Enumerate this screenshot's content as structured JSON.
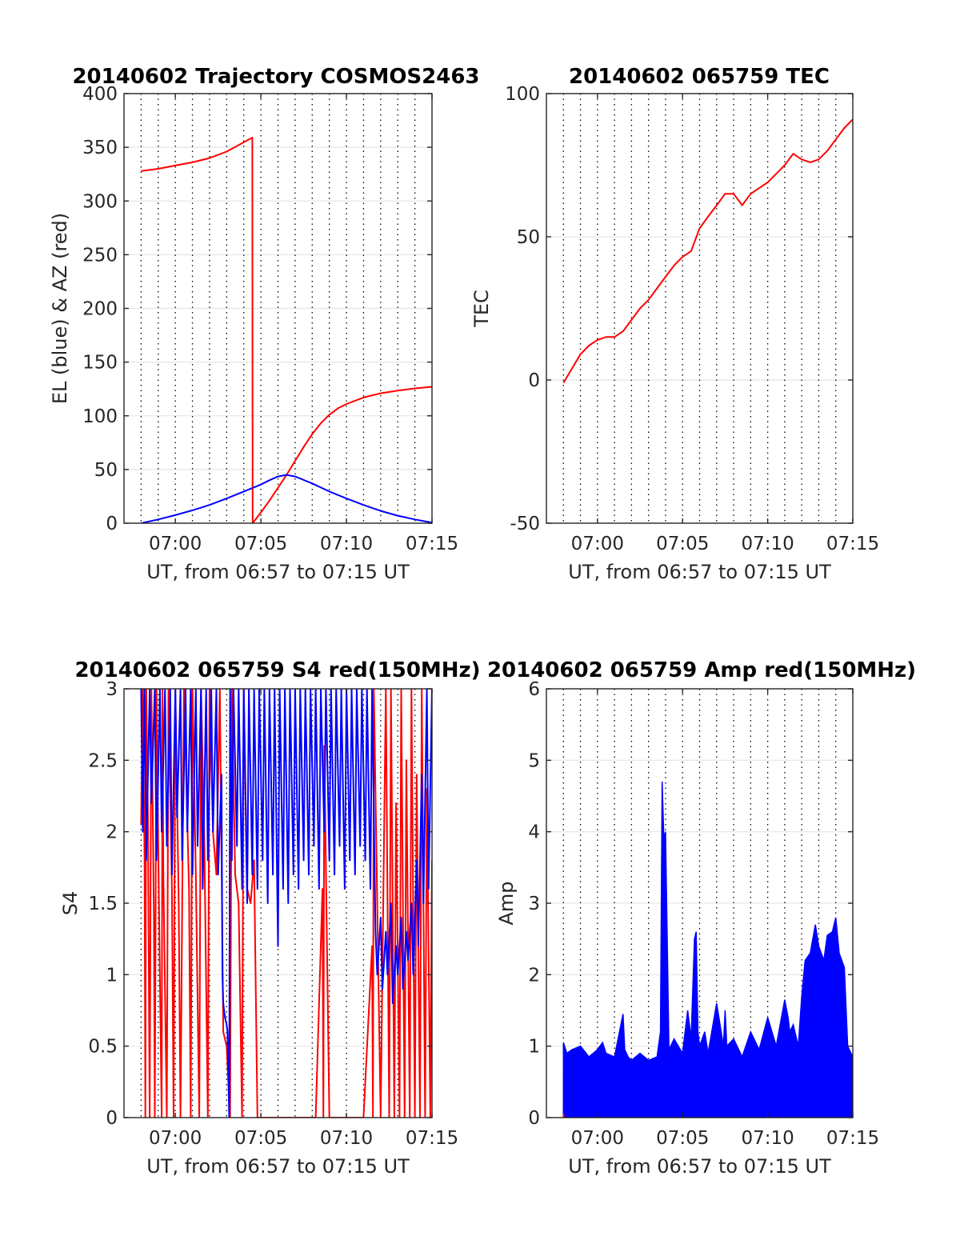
{
  "figure": {
    "background": "#ffffff",
    "colors": {
      "red": "#ff0000",
      "blue": "#0000ff",
      "axis": "#262626",
      "grid": "#e6e6e6",
      "minor": "#000000"
    }
  },
  "chart_data": [
    {
      "id": "traj",
      "type": "line",
      "title": "20140602 Trajectory COSMOS2463",
      "xlabel": "UT, from 06:57 to 07:15 UT",
      "ylabel": "EL (blue) & AZ (red)",
      "x_unit": "minutes after 06:57",
      "xlim": [
        0,
        18
      ],
      "ylim": [
        0,
        400
      ],
      "xticks": [
        3,
        8,
        13,
        18
      ],
      "xtick_labels": [
        "07:00",
        "07:05",
        "07:10",
        "07:15"
      ],
      "yticks": [
        0,
        50,
        100,
        150,
        200,
        250,
        300,
        350,
        400
      ],
      "ytick_labels": [
        "0",
        "50",
        "100",
        "150",
        "200",
        "250",
        "300",
        "350",
        "400"
      ],
      "minor_x_grid": true,
      "series": [
        {
          "color": "#ff0000",
          "x": [
            1,
            2,
            3,
            4,
            5,
            6,
            6.7,
            7.5,
            7.52,
            8,
            8.5,
            9,
            9.5,
            10,
            10.5,
            11,
            11.5,
            12,
            12.5,
            13,
            14,
            15,
            16,
            17,
            18
          ],
          "y": [
            328,
            330,
            333,
            336,
            340,
            346,
            352,
            359,
            0,
            10,
            21,
            33,
            45,
            58,
            71,
            83,
            93,
            101,
            107,
            111,
            117,
            121,
            123.5,
            125.5,
            127
          ]
        },
        {
          "color": "#0000ff",
          "x": [
            1,
            2,
            3,
            4,
            5,
            6,
            7,
            8,
            8.5,
            9,
            9.5,
            10,
            11,
            12,
            13,
            14,
            15,
            16,
            17,
            18
          ],
          "y": [
            0,
            3.5,
            7.5,
            12,
            17,
            23,
            29.5,
            36,
            40,
            43.5,
            45,
            43.5,
            37,
            29.5,
            23,
            17,
            11.5,
            7,
            3.5,
            0.5
          ]
        }
      ]
    },
    {
      "id": "tec",
      "type": "line",
      "title": "20140602 065759 TEC",
      "xlabel": "UT, from 06:57 to 07:15 UT",
      "ylabel": "TEC",
      "x_unit": "minutes after 06:57",
      "xlim": [
        0,
        18
      ],
      "ylim": [
        -50,
        100
      ],
      "xticks": [
        3,
        8,
        13,
        18
      ],
      "xtick_labels": [
        "07:00",
        "07:05",
        "07:10",
        "07:15"
      ],
      "yticks": [
        -50,
        0,
        50,
        100
      ],
      "ytick_labels": [
        "-50",
        "0",
        "50",
        "100"
      ],
      "minor_x_grid": true,
      "series": [
        {
          "color": "#ff0000",
          "x": [
            1,
            1.5,
            2,
            2.5,
            3,
            3.5,
            4,
            4.5,
            5,
            5.5,
            6,
            6.5,
            7,
            7.5,
            8,
            8.5,
            9,
            9.5,
            10,
            10.5,
            11,
            11.5,
            12,
            12.5,
            13,
            13.5,
            14,
            14.5,
            15,
            15.5,
            16,
            16.5,
            17,
            17.5,
            18
          ],
          "y": [
            -1,
            4,
            9,
            12,
            14,
            15,
            15,
            17,
            21,
            25,
            28,
            32,
            36,
            40,
            43,
            45,
            53,
            57,
            61,
            65,
            65,
            61,
            65,
            67,
            69,
            72,
            75,
            79,
            77,
            76,
            77,
            80,
            84,
            88,
            91
          ]
        }
      ]
    },
    {
      "id": "s4",
      "type": "line",
      "title": "20140602 065759 S4 red(150MHz)",
      "xlabel": "UT, from 06:57 to 07:15 UT",
      "ylabel": "S4",
      "x_unit": "minutes after 06:57",
      "xlim": [
        0,
        18
      ],
      "ylim": [
        0,
        3
      ],
      "xticks": [
        3,
        8,
        13,
        18
      ],
      "xtick_labels": [
        "07:00",
        "07:05",
        "07:10",
        "07:15"
      ],
      "yticks": [
        0,
        0.5,
        1,
        1.5,
        2,
        2.5,
        3
      ],
      "ytick_labels": [
        "0",
        "0.5",
        "1",
        "1.5",
        "2",
        "2.5",
        "3"
      ],
      "minor_x_grid": true,
      "series": [
        {
          "color": "#ff0000",
          "x": [
            1.0,
            1.1,
            1.2,
            1.25,
            1.3,
            1.4,
            1.5,
            1.6,
            1.75,
            1.8,
            1.9,
            2.0,
            2.2,
            2.25,
            2.3,
            2.5,
            2.6,
            2.8,
            2.9,
            3.0,
            3.2,
            3.3,
            3.5,
            3.8,
            3.9,
            4.0,
            4.2,
            4.4,
            4.5,
            4.7,
            4.9,
            5.0,
            5.2,
            5.4,
            5.6,
            5.8,
            6.0,
            6.2,
            6.3,
            6.5,
            6.7,
            6.9,
            7.0,
            7.2,
            7.4,
            7.6,
            7.8,
            8.0,
            8.4,
            8.8,
            9.2,
            9.6,
            10.0,
            10.4,
            10.8,
            11.2,
            11.6,
            11.65,
            11.7,
            12.0,
            12.5,
            13.0,
            13.5,
            14.0,
            14.5,
            14.55,
            14.6,
            15.0,
            15.3,
            15.5,
            15.6,
            15.8,
            15.9,
            16.1,
            16.2,
            16.4,
            16.5,
            16.7,
            16.8,
            17.0,
            17.1,
            17.3,
            17.4,
            17.6,
            17.7,
            17.9,
            18.0
          ],
          "y": [
            2.05,
            3.0,
            1.8,
            0.0,
            3.0,
            2.1,
            0.0,
            3.0,
            1.4,
            0.0,
            3.0,
            1.9,
            0.0,
            3.0,
            1.7,
            0.0,
            3.0,
            1.6,
            0.0,
            3.0,
            1.5,
            0.0,
            3.0,
            1.6,
            0.0,
            3.0,
            1.7,
            0.0,
            3.0,
            1.9,
            0.0,
            3.0,
            2.0,
            1.7,
            3.0,
            0.6,
            0.5,
            0.0,
            3.0,
            1.7,
            1.5,
            0.0,
            3.0,
            1.6,
            1.5,
            1.8,
            0.0,
            0.0,
            0.0,
            0.0,
            0.0,
            0.0,
            0.0,
            0.0,
            0.0,
            0.0,
            1.6,
            0.0,
            2.6,
            0.0,
            0.0,
            0.0,
            0.0,
            0.0,
            1.2,
            0.0,
            3.0,
            0.0,
            3.0,
            0.0,
            3.0,
            0.0,
            2.2,
            0.0,
            3.0,
            0.0,
            2.5,
            0.0,
            3.0,
            0.0,
            2.4,
            0.0,
            3.0,
            0.0,
            2.3,
            0.0,
            1.8
          ]
        },
        {
          "color": "#0000ff",
          "x": [
            1.0,
            1.1,
            1.2,
            1.3,
            1.5,
            1.6,
            1.8,
            1.9,
            2.1,
            2.2,
            2.4,
            2.5,
            2.7,
            2.8,
            3.0,
            3.1,
            3.3,
            3.4,
            3.6,
            3.7,
            3.9,
            4.0,
            4.2,
            4.3,
            4.5,
            4.6,
            4.8,
            4.9,
            5.1,
            5.2,
            5.4,
            5.5,
            5.7,
            5.75,
            5.8,
            5.9,
            6.0,
            6.05,
            6.15,
            6.2,
            6.3,
            6.4,
            6.6,
            6.7,
            6.9,
            7.0,
            7.2,
            7.3,
            7.5,
            7.6,
            7.8,
            7.9,
            8.1,
            8.2,
            8.4,
            8.5,
            8.7,
            8.8,
            9.0,
            9.1,
            9.3,
            9.4,
            9.6,
            9.7,
            9.9,
            10.0,
            10.2,
            10.3,
            10.5,
            10.6,
            10.8,
            10.9,
            11.1,
            11.2,
            11.4,
            11.5,
            11.7,
            11.8,
            12.0,
            12.1,
            12.3,
            12.4,
            12.6,
            12.7,
            12.9,
            13.0,
            13.2,
            13.3,
            13.5,
            13.6,
            13.8,
            13.9,
            14.1,
            14.2,
            14.4,
            14.5,
            14.7,
            14.8,
            15.0,
            15.1,
            15.3,
            15.4,
            15.6,
            15.7,
            15.9,
            16.0,
            16.2,
            16.3,
            16.5,
            16.6,
            16.8,
            16.9,
            17.1,
            17.2,
            17.4,
            17.5,
            17.7,
            17.8,
            18.0
          ],
          "y": [
            3.0,
            2.0,
            3.0,
            1.8,
            3.0,
            2.2,
            3.0,
            1.8,
            3.0,
            2.0,
            3.0,
            1.9,
            3.0,
            1.7,
            3.0,
            2.1,
            3.0,
            1.8,
            3.0,
            2.0,
            3.0,
            1.7,
            3.0,
            1.9,
            3.0,
            1.6,
            3.0,
            1.8,
            3.0,
            2.0,
            3.0,
            1.7,
            2.4,
            1.0,
            0.8,
            0.7,
            0.65,
            0.6,
            0.0,
            3.0,
            1.8,
            3.0,
            1.9,
            3.0,
            1.6,
            3.0,
            1.5,
            3.0,
            1.7,
            3.0,
            1.6,
            3.0,
            1.8,
            3.0,
            1.5,
            3.0,
            1.7,
            3.0,
            1.2,
            3.0,
            1.6,
            3.0,
            1.5,
            3.0,
            1.7,
            3.0,
            1.6,
            3.0,
            1.8,
            3.0,
            1.7,
            3.0,
            1.9,
            3.0,
            1.6,
            3.0,
            2.0,
            3.0,
            1.8,
            3.0,
            1.7,
            3.0,
            1.9,
            3.0,
            1.6,
            3.0,
            1.8,
            3.0,
            1.7,
            3.0,
            1.9,
            3.0,
            1.8,
            3.0,
            1.6,
            3.0,
            1.3,
            1.0,
            1.4,
            0.9,
            1.3,
            1.0,
            1.5,
            0.8,
            1.2,
            1.0,
            1.4,
            0.9,
            1.3,
            1.1,
            1.5,
            1.0,
            1.8,
            1.2,
            2.4,
            1.5,
            3.0,
            1.6,
            3.0
          ]
        }
      ]
    },
    {
      "id": "amp",
      "type": "line",
      "title": "20140602 065759 Amp red(150MHz)",
      "xlabel": "UT, from 06:57 to 07:15 UT",
      "ylabel": "Amp",
      "x_unit": "minutes after 06:57",
      "xlim": [
        0,
        18
      ],
      "ylim": [
        0,
        6
      ],
      "xticks": [
        3,
        8,
        13,
        18
      ],
      "xtick_labels": [
        "07:00",
        "07:05",
        "07:10",
        "07:15"
      ],
      "yticks": [
        0,
        1,
        2,
        3,
        4,
        5,
        6
      ],
      "ytick_labels": [
        "0",
        "1",
        "2",
        "3",
        "4",
        "5",
        "6"
      ],
      "minor_x_grid": true,
      "envelope_series": {
        "color": "#0000ff",
        "baseline": 0,
        "x": [
          1.0,
          1.2,
          1.5,
          2.0,
          2.5,
          3.0,
          3.3,
          3.5,
          4.0,
          4.5,
          4.6,
          4.8,
          5.0,
          5.5,
          6.0,
          6.5,
          6.7,
          6.8,
          6.9,
          7.0,
          7.2,
          7.5,
          8.0,
          8.3,
          8.5,
          8.7,
          8.8,
          8.9,
          9.0,
          9.3,
          9.5,
          10.0,
          10.4,
          10.5,
          10.6,
          11.0,
          11.5,
          12.0,
          12.5,
          13.0,
          13.5,
          14.0,
          14.2,
          14.3,
          14.5,
          14.8,
          15.0,
          15.2,
          15.5,
          15.8,
          16.0,
          16.3,
          16.5,
          16.8,
          17.0,
          17.2,
          17.5,
          17.7,
          18.0
        ],
        "y": [
          1.05,
          0.9,
          0.95,
          1.0,
          0.85,
          0.95,
          1.05,
          0.9,
          0.85,
          1.45,
          0.95,
          0.85,
          0.8,
          0.9,
          0.8,
          0.85,
          1.2,
          4.7,
          3.9,
          4.0,
          0.95,
          1.1,
          0.9,
          1.5,
          1.1,
          2.5,
          2.6,
          1.2,
          1.0,
          1.2,
          0.9,
          1.6,
          1.0,
          1.5,
          1.0,
          1.1,
          0.85,
          1.2,
          0.95,
          1.4,
          1.0,
          1.65,
          1.4,
          1.2,
          1.3,
          1.0,
          1.7,
          2.2,
          2.3,
          2.7,
          2.4,
          2.2,
          2.55,
          2.6,
          2.8,
          2.3,
          2.1,
          1.0,
          0.85
        ]
      },
      "series": [
        {
          "color": "#ff0000",
          "x": [
            1.0,
            1.02
          ],
          "y": [
            0.0,
            0.05
          ]
        }
      ]
    }
  ]
}
